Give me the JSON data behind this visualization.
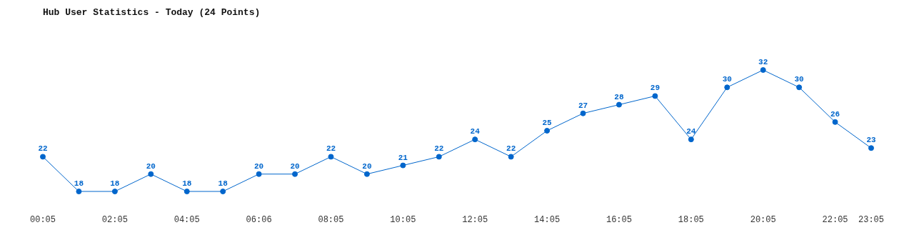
{
  "chart_data": {
    "type": "line",
    "title": "Hub User Statistics - Today (24 Points)",
    "categories": [
      "00:05",
      null,
      "02:05",
      null,
      "04:05",
      null,
      "06:06",
      null,
      "08:05",
      null,
      "10:05",
      null,
      "12:05",
      null,
      "14:05",
      null,
      "16:05",
      null,
      "18:05",
      null,
      "20:05",
      null,
      "22:05",
      "23:05"
    ],
    "values": [
      22,
      18,
      18,
      20,
      18,
      18,
      20,
      20,
      22,
      20,
      21,
      22,
      24,
      22,
      25,
      27,
      28,
      29,
      24,
      30,
      32,
      30,
      26,
      23
    ],
    "color": "#0066cc",
    "data_labels": true,
    "marker": "circle"
  }
}
